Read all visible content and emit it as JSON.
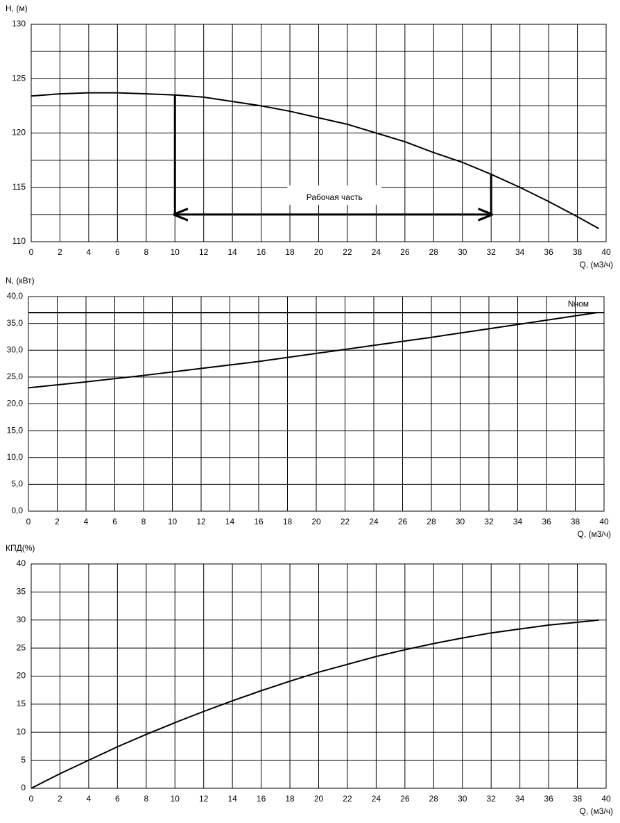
{
  "chart_data": [
    {
      "type": "line",
      "ylabel": "H, (м)",
      "xlabel": "Q, (м3/ч)",
      "x": [
        0,
        2,
        4,
        6,
        8,
        10,
        12,
        14,
        16,
        18,
        20,
        22,
        24,
        26,
        28,
        30,
        32,
        34,
        36,
        38,
        39.5
      ],
      "values": [
        123.4,
        123.6,
        123.7,
        123.7,
        123.6,
        123.5,
        123.3,
        122.9,
        122.5,
        122.0,
        121.4,
        120.8,
        120.0,
        119.2,
        118.2,
        117.3,
        116.2,
        115.0,
        113.7,
        112.3,
        111.2
      ],
      "color": "#000000",
      "xlim": [
        0,
        40
      ],
      "xticks": [
        0,
        2,
        4,
        6,
        8,
        10,
        12,
        14,
        16,
        18,
        20,
        22,
        24,
        26,
        28,
        30,
        32,
        34,
        36,
        38,
        40
      ],
      "ylim": [
        110,
        130
      ],
      "yticks": [
        110,
        115,
        120,
        125,
        130
      ],
      "ygrid": [
        112.5,
        117.5,
        122.5,
        127.5
      ],
      "grid": true,
      "working_range": {
        "q": [
          10,
          32
        ],
        "h": 112.5,
        "label": "Рабочая часть"
      }
    },
    {
      "type": "line",
      "ylabel": "N, (кВт)",
      "xlabel": "Q, (м3/ч)",
      "x": [
        0,
        4,
        8,
        12,
        16,
        20,
        24,
        28,
        32,
        36,
        39.5
      ],
      "values": [
        23.0,
        24.1,
        25.3,
        26.6,
        27.9,
        29.4,
        30.9,
        32.4,
        34.0,
        35.6,
        37.0
      ],
      "color": "#000000",
      "xlim": [
        0,
        40
      ],
      "xticks": [
        0,
        2,
        4,
        6,
        8,
        10,
        12,
        14,
        16,
        18,
        20,
        22,
        24,
        26,
        28,
        30,
        32,
        34,
        36,
        38,
        40
      ],
      "ylim": [
        0,
        40
      ],
      "yticks": [
        {
          "value": 0,
          "label": "0,0"
        },
        {
          "value": 5,
          "label": "5,0"
        },
        {
          "value": 10,
          "label": "10,0"
        },
        {
          "value": 15,
          "label": "15,0"
        },
        {
          "value": 20,
          "label": "20,0"
        },
        {
          "value": 25,
          "label": "25,0"
        },
        {
          "value": 30,
          "label": "30,0"
        },
        {
          "value": 35,
          "label": "35,0"
        },
        {
          "value": 40,
          "label": "40,0"
        }
      ],
      "grid": true,
      "reference_line": {
        "value": 37.0,
        "label": "Nном"
      }
    },
    {
      "type": "line",
      "ylabel": "КПД(%)",
      "xlabel": "Q, (м3/ч)",
      "x": [
        0,
        2,
        4,
        6,
        8,
        10,
        12,
        14,
        16,
        18,
        20,
        22,
        24,
        26,
        28,
        30,
        32,
        34,
        36,
        38,
        39.5
      ],
      "values": [
        0,
        2.6,
        5.0,
        7.4,
        9.6,
        11.7,
        13.7,
        15.6,
        17.4,
        19.1,
        20.7,
        22.1,
        23.5,
        24.7,
        25.8,
        26.8,
        27.7,
        28.4,
        29.1,
        29.6,
        30.0
      ],
      "color": "#000000",
      "xlim": [
        0,
        40
      ],
      "xticks": [
        0,
        2,
        4,
        6,
        8,
        10,
        12,
        14,
        16,
        18,
        20,
        22,
        24,
        26,
        28,
        30,
        32,
        34,
        36,
        38,
        40
      ],
      "ylim": [
        0,
        40
      ],
      "yticks": [
        0,
        5,
        10,
        15,
        20,
        25,
        30,
        35,
        40
      ],
      "grid": true
    }
  ]
}
